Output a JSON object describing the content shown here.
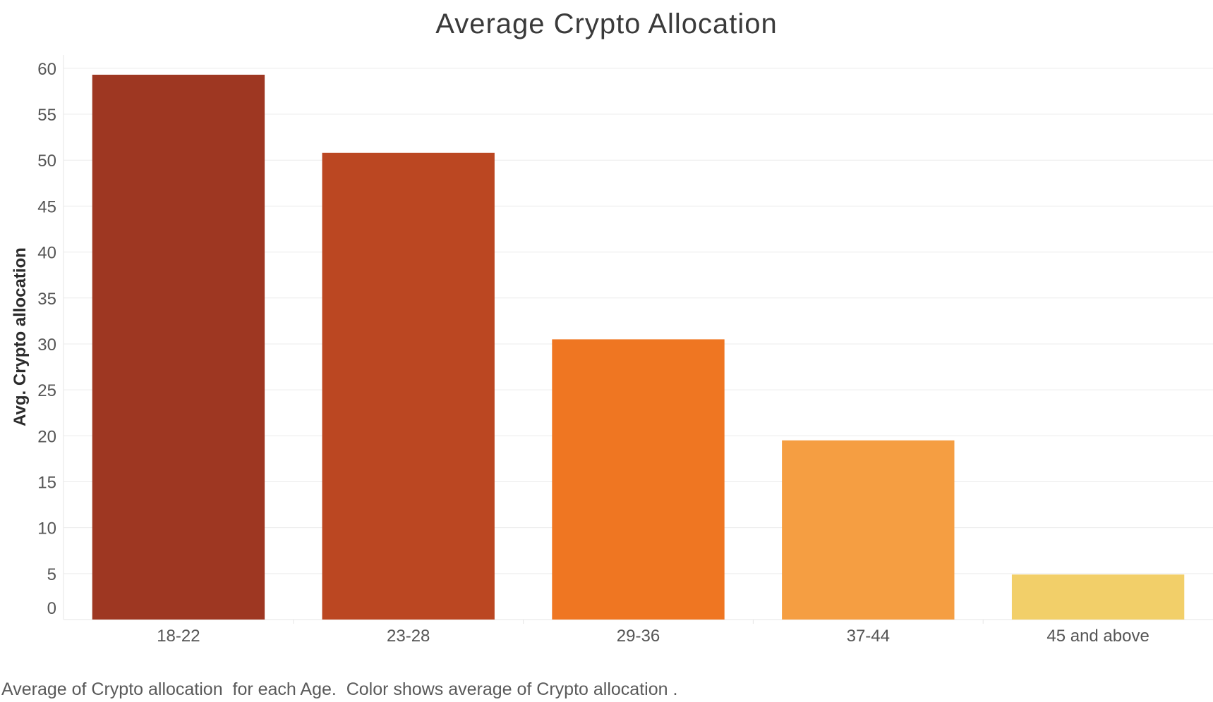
{
  "caption": "Average of Crypto allocation  for each Age.  Color shows average of Crypto allocation .",
  "chart_data": {
    "type": "bar",
    "title": "Average Crypto Allocation",
    "xlabel": "",
    "ylabel": "Avg. Crypto allocation",
    "categories": [
      "18-22",
      "23-28",
      "29-36",
      "37-44",
      "45 and above"
    ],
    "values": [
      59.3,
      50.8,
      30.5,
      19.5,
      4.9
    ],
    "colors": [
      "#9e3722",
      "#bb4722",
      "#ef7622",
      "#f59e42",
      "#f2cf69"
    ],
    "ylim": [
      0,
      62
    ],
    "yticks": [
      0,
      5,
      10,
      15,
      20,
      25,
      30,
      35,
      40,
      45,
      50,
      55,
      60
    ],
    "grid": true
  }
}
